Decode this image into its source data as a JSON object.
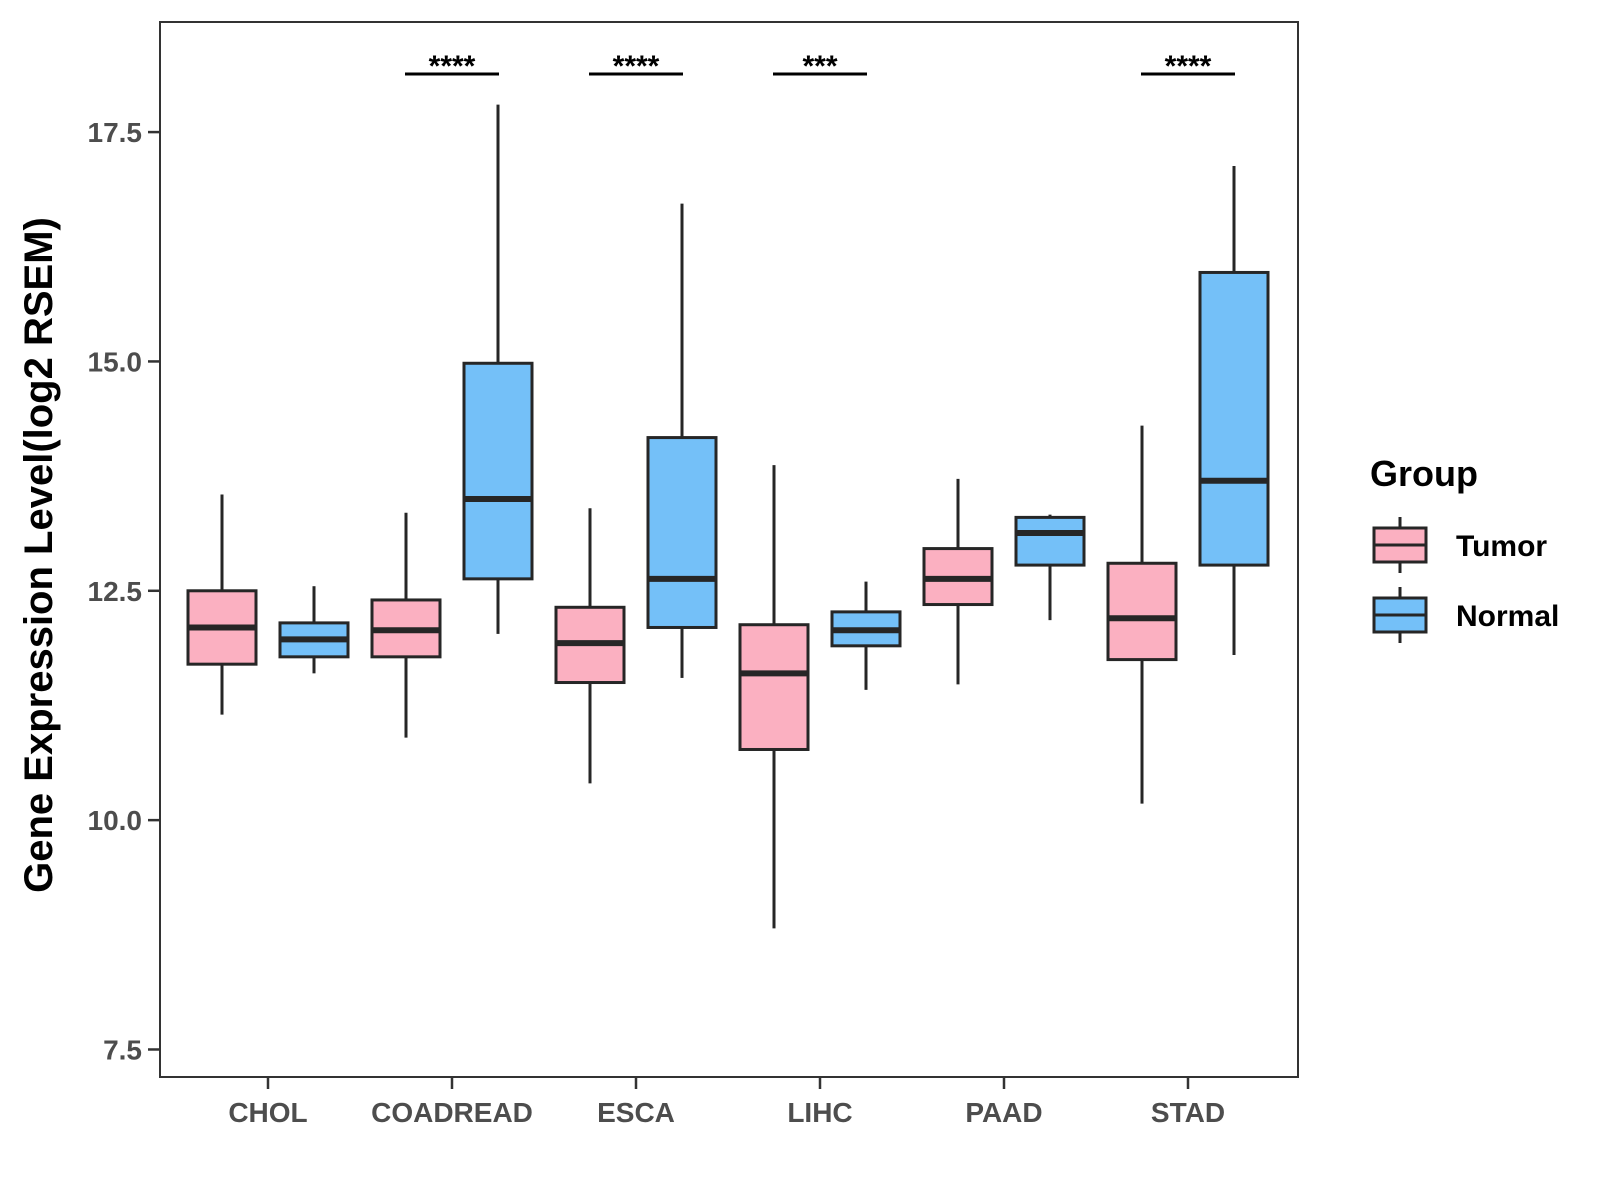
{
  "chart_data": {
    "type": "boxplot",
    "title": "",
    "xlabel": "",
    "ylabel": "Gene Expression Level(log2 RSEM)",
    "ylim": [
      7.2,
      18.7
    ],
    "yticks": [
      7.5,
      10.0,
      12.5,
      15.0,
      17.5
    ],
    "ytick_labels": [
      "7.5",
      "10.0",
      "12.5",
      "15.0",
      "17.5"
    ],
    "categories": [
      "CHOL",
      "COADREAD",
      "ESCA",
      "LIHC",
      "PAAD",
      "STAD"
    ],
    "series": [
      {
        "name": "Tumor",
        "color": "#FBB0C1",
        "boxes": [
          {
            "min": 11.15,
            "q1": 11.7,
            "median": 12.1,
            "q3": 12.5,
            "max": 13.55
          },
          {
            "min": 10.9,
            "q1": 11.78,
            "median": 12.07,
            "q3": 12.4,
            "max": 13.35
          },
          {
            "min": 10.4,
            "q1": 11.5,
            "median": 11.93,
            "q3": 12.32,
            "max": 13.4
          },
          {
            "min": 8.82,
            "q1": 10.77,
            "median": 11.6,
            "q3": 12.13,
            "max": 13.87
          },
          {
            "min": 11.48,
            "q1": 12.35,
            "median": 12.63,
            "q3": 12.96,
            "max": 13.72
          },
          {
            "min": 10.18,
            "q1": 11.75,
            "median": 12.2,
            "q3": 12.8,
            "max": 14.3
          }
        ]
      },
      {
        "name": "Normal",
        "color": "#74C0F8",
        "boxes": [
          {
            "min": 11.6,
            "q1": 11.78,
            "median": 11.97,
            "q3": 12.15,
            "max": 12.55
          },
          {
            "min": 12.03,
            "q1": 12.63,
            "median": 13.5,
            "q3": 14.98,
            "max": 17.8
          },
          {
            "min": 11.55,
            "q1": 12.1,
            "median": 12.63,
            "q3": 14.17,
            "max": 16.72
          },
          {
            "min": 11.42,
            "q1": 11.9,
            "median": 12.07,
            "q3": 12.27,
            "max": 12.6
          },
          {
            "min": 12.18,
            "q1": 12.78,
            "median": 13.13,
            "q3": 13.3,
            "max": 13.33
          },
          {
            "min": 11.8,
            "q1": 12.78,
            "median": 13.7,
            "q3": 15.97,
            "max": 17.13
          }
        ]
      }
    ],
    "significance": [
      "",
      "****",
      "****",
      "***",
      "",
      "****"
    ],
    "legend": {
      "title": "Group",
      "position": "right",
      "entries": [
        "Tumor",
        "Normal"
      ]
    },
    "grid": false
  }
}
